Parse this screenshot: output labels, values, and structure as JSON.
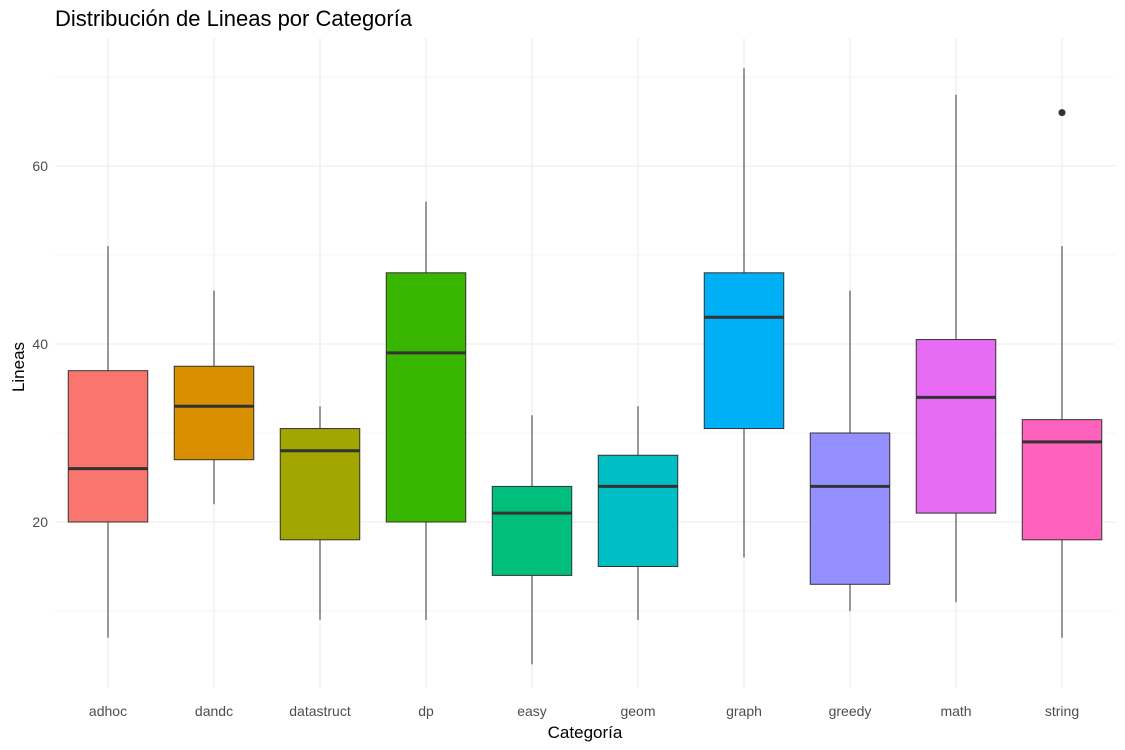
{
  "chart_data": {
    "type": "boxplot",
    "title": "Distribución de Lineas por Categoría",
    "xlabel": "Categoría",
    "ylabel": "Lineas",
    "ylim": [
      1,
      75
    ],
    "yticks": [
      20,
      40,
      60
    ],
    "grid": true,
    "legend": "none",
    "categories": [
      "adhoc",
      "dandc",
      "datastruct",
      "dp",
      "easy",
      "geom",
      "graph",
      "greedy",
      "math",
      "string"
    ],
    "boxes": [
      {
        "category": "adhoc",
        "min": 7,
        "q1": 20,
        "median": 26,
        "q3": 37,
        "max": 51,
        "outliers": [],
        "color": "#F8766D"
      },
      {
        "category": "dandc",
        "min": 22,
        "q1": 27,
        "median": 33,
        "q3": 37.5,
        "max": 46,
        "outliers": [],
        "color": "#D89000"
      },
      {
        "category": "datastruct",
        "min": 9,
        "q1": 18,
        "median": 28,
        "q3": 30.5,
        "max": 33,
        "outliers": [],
        "color": "#A3A500"
      },
      {
        "category": "dp",
        "min": 9,
        "q1": 20,
        "median": 39,
        "q3": 48,
        "max": 56,
        "outliers": [],
        "color": "#39B600"
      },
      {
        "category": "easy",
        "min": 4,
        "q1": 14,
        "median": 21,
        "q3": 24,
        "max": 32,
        "outliers": [],
        "color": "#00BF7D"
      },
      {
        "category": "geom",
        "min": 9,
        "q1": 15,
        "median": 24,
        "q3": 27.5,
        "max": 33,
        "outliers": [],
        "color": "#00BFC4"
      },
      {
        "category": "graph",
        "min": 16,
        "q1": 30.5,
        "median": 43,
        "q3": 48,
        "max": 71,
        "outliers": [],
        "color": "#00B0F6"
      },
      {
        "category": "greedy",
        "min": 10,
        "q1": 13,
        "median": 24,
        "q3": 30,
        "max": 46,
        "outliers": [],
        "color": "#9590FF"
      },
      {
        "category": "math",
        "min": 11,
        "q1": 21,
        "median": 34,
        "q3": 40.5,
        "max": 68,
        "outliers": [],
        "color": "#E76BF3"
      },
      {
        "category": "string",
        "min": 7,
        "q1": 18,
        "median": 29,
        "q3": 31.5,
        "max": 51,
        "outliers": [
          66
        ],
        "color": "#FF62BC"
      }
    ]
  }
}
